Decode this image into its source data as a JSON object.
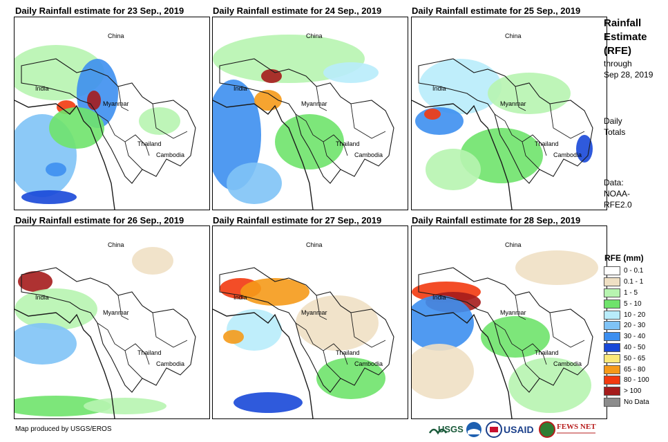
{
  "panels": [
    {
      "title": "Daily Rainfall estimate for 23 Sep., 2019",
      "labels": {
        "china": "China",
        "india": "India",
        "myanmar": "Myanmar",
        "thailand": "Thailand",
        "cambodia": "Cambodia"
      }
    },
    {
      "title": "Daily Rainfall estimate for 24 Sep., 2019",
      "labels": {
        "china": "China",
        "india": "India",
        "myanmar": "Myanmar",
        "thailand": "Thailand",
        "cambodia": "Cambodia"
      }
    },
    {
      "title": "Daily Rainfall estimate for 25 Sep., 2019",
      "labels": {
        "china": "China",
        "india": "India",
        "myanmar": "Myanmar",
        "thailand": "Thailand",
        "cambodia": "Cambodia"
      }
    },
    {
      "title": "Daily Rainfall estimate for 26 Sep., 2019",
      "labels": {
        "china": "China",
        "india": "India",
        "myanmar": "Myanmar",
        "thailand": "Thailand",
        "cambodia": "Cambodia"
      }
    },
    {
      "title": "Daily Rainfall estimate for 27 Sep., 2019",
      "labels": {
        "china": "China",
        "india": "India",
        "myanmar": "Myanmar",
        "thailand": "Thailand",
        "cambodia": "Cambodia"
      }
    },
    {
      "title": "Daily Rainfall estimate for 28 Sep., 2019",
      "labels": {
        "china": "China",
        "india": "India",
        "myanmar": "Myanmar",
        "thailand": "Thailand",
        "cambodia": "Cambodia"
      }
    }
  ],
  "sidebar": {
    "title_lines": [
      "Rainfall",
      "Estimate",
      "(RFE)"
    ],
    "through": "through",
    "date": "Sep 28, 2019",
    "totals_lines": [
      "Daily",
      "Totals"
    ],
    "data_lines": [
      "Data:",
      "NOAA-",
      "RFE2.0"
    ]
  },
  "legend": {
    "title": "RFE (mm)",
    "items": [
      {
        "label": "0 - 0.1",
        "color": "#ffffff"
      },
      {
        "label": "0.1 - 1",
        "color": "#efe0c4"
      },
      {
        "label": "1 - 5",
        "color": "#b7f4b0"
      },
      {
        "label": "5 - 10",
        "color": "#6fe36b"
      },
      {
        "label": "10 - 20",
        "color": "#b8ecfb"
      },
      {
        "label": "20 - 30",
        "color": "#7fc3f6"
      },
      {
        "label": "30 - 40",
        "color": "#3d8ff0"
      },
      {
        "label": "40 - 50",
        "color": "#1848d8"
      },
      {
        "label": "50 - 65",
        "color": "#fbe97a"
      },
      {
        "label": "65 - 80",
        "color": "#f59a1a"
      },
      {
        "label": "80 - 100",
        "color": "#f23a10"
      },
      {
        "label": "> 100",
        "color": "#a51c1c"
      },
      {
        "label": "No Data",
        "color": "#8c8c8c"
      }
    ]
  },
  "credit": "Map produced by USGS/EROS",
  "logos": {
    "usgs": "USGS",
    "usaid": "USAID",
    "fewsnet": "FEWS NET"
  }
}
